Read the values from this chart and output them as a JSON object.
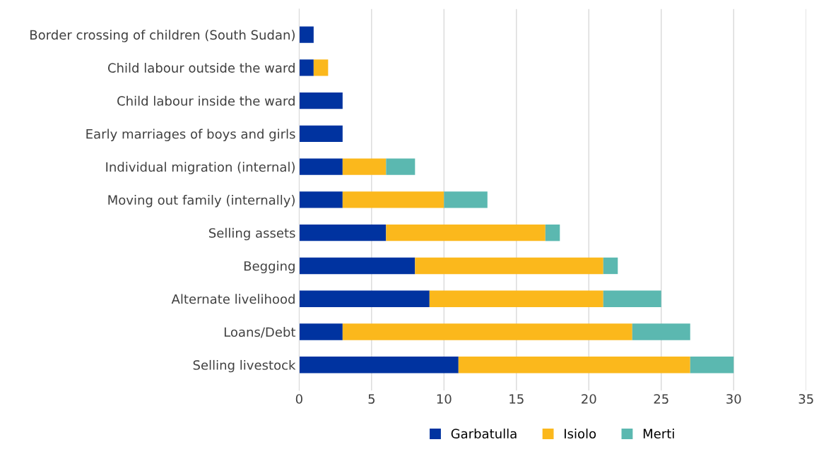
{
  "chart_data": {
    "type": "bar",
    "orientation": "horizontal",
    "stacked": true,
    "categories": [
      "Border crossing of children (South Sudan)",
      "Child labour outside the ward",
      "Child labour inside the ward",
      "Early marriages of boys and girls",
      "Individual migration (internal)",
      "Moving out family (internally)",
      "Selling assets",
      "Begging",
      "Alternate livelihood",
      "Loans/Debt",
      "Selling livestock"
    ],
    "series": [
      {
        "name": "Garbatulla",
        "color": "#0033a0",
        "values": [
          1,
          1,
          3,
          3,
          3,
          3,
          6,
          8,
          9,
          3,
          11
        ]
      },
      {
        "name": "Isiolo",
        "color": "#fbb81c",
        "values": [
          null,
          1,
          null,
          null,
          3,
          7,
          11,
          13,
          12,
          20,
          16
        ]
      },
      {
        "name": "Merti",
        "color": "#5bb8b0",
        "values": [
          null,
          null,
          null,
          null,
          2,
          3,
          1,
          1,
          4,
          4,
          3
        ]
      }
    ],
    "xlim": [
      0,
      35
    ],
    "xticks": [
      0,
      5,
      10,
      15,
      20,
      25,
      30,
      35
    ],
    "grid": "x",
    "legend": "bottom"
  }
}
